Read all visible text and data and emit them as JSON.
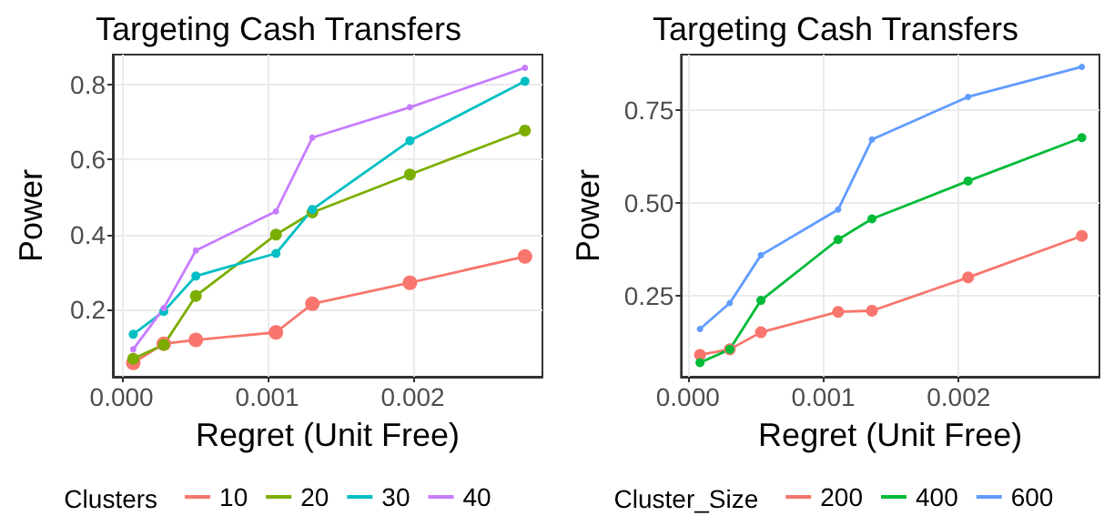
{
  "chart_data": [
    {
      "type": "line",
      "title": "Targeting Cash Transfers",
      "xlabel": "Regret (Unit Free)",
      "ylabel": "Power",
      "legend_title": "Clusters",
      "legend": "bottom",
      "grid": true,
      "marker": "circle",
      "line_style": "solid",
      "x": [
        8e-05,
        0.00029,
        0.00051,
        0.00106,
        0.00131,
        0.00198,
        0.00277
      ],
      "xlim": [
        -6e-05,
        0.00289
      ],
      "xticks": [
        {
          "value": 0,
          "label": "0.000"
        },
        {
          "value": 0.001,
          "label": "0.001"
        },
        {
          "value": 0.002,
          "label": "0.002"
        }
      ],
      "ylim": [
        0.022,
        0.879
      ],
      "yticks": [
        0.2,
        0.4,
        0.6,
        0.8
      ],
      "series": [
        {
          "name": "10",
          "color": "#f8766d",
          "values": [
            0.059,
            0.11,
            0.12,
            0.14,
            0.216,
            0.272,
            0.342
          ]
        },
        {
          "name": "20",
          "color": "#7cae00",
          "values": [
            0.07,
            0.107,
            0.237,
            0.4,
            0.459,
            0.56,
            0.677
          ]
        },
        {
          "name": "30",
          "color": "#00bfc4",
          "values": [
            0.135,
            0.196,
            0.29,
            0.35,
            0.467,
            0.65,
            0.808
          ]
        },
        {
          "name": "40",
          "color": "#c77cff",
          "values": [
            0.095,
            0.205,
            0.358,
            0.462,
            0.658,
            0.739,
            0.844
          ]
        }
      ]
    },
    {
      "type": "line",
      "title": "Targeting Cash Transfers",
      "xlabel": "Regret (Unit Free)",
      "ylabel": "Power",
      "legend_title": "Cluster_Size",
      "legend": "bottom",
      "grid": true,
      "marker": "circle",
      "line_style": "solid",
      "x": [
        9e-05,
        0.00031,
        0.00054,
        0.00111,
        0.00136,
        0.00207,
        0.00291
      ],
      "xlim": [
        -5e-05,
        0.00304
      ],
      "xticks": [
        {
          "value": 0,
          "label": "0.000"
        },
        {
          "value": 0.001,
          "label": "0.001"
        },
        {
          "value": 0.002,
          "label": "0.002"
        }
      ],
      "ylim": [
        0.031,
        0.9
      ],
      "yticks": [
        {
          "value": 0.25,
          "label": "0.25"
        },
        {
          "value": 0.5,
          "label": "0.50"
        },
        {
          "value": 0.75,
          "label": "0.75"
        }
      ],
      "series": [
        {
          "name": "200",
          "color": "#f8766d",
          "values": [
            0.09,
            0.105,
            0.151,
            0.206,
            0.209,
            0.299,
            0.411
          ]
        },
        {
          "name": "400",
          "color": "#00ba38",
          "values": [
            0.069,
            0.105,
            0.237,
            0.401,
            0.457,
            0.559,
            0.676
          ]
        },
        {
          "name": "600",
          "color": "#619cff",
          "values": [
            0.16,
            0.23,
            0.359,
            0.482,
            0.671,
            0.786,
            0.867
          ]
        }
      ]
    }
  ]
}
